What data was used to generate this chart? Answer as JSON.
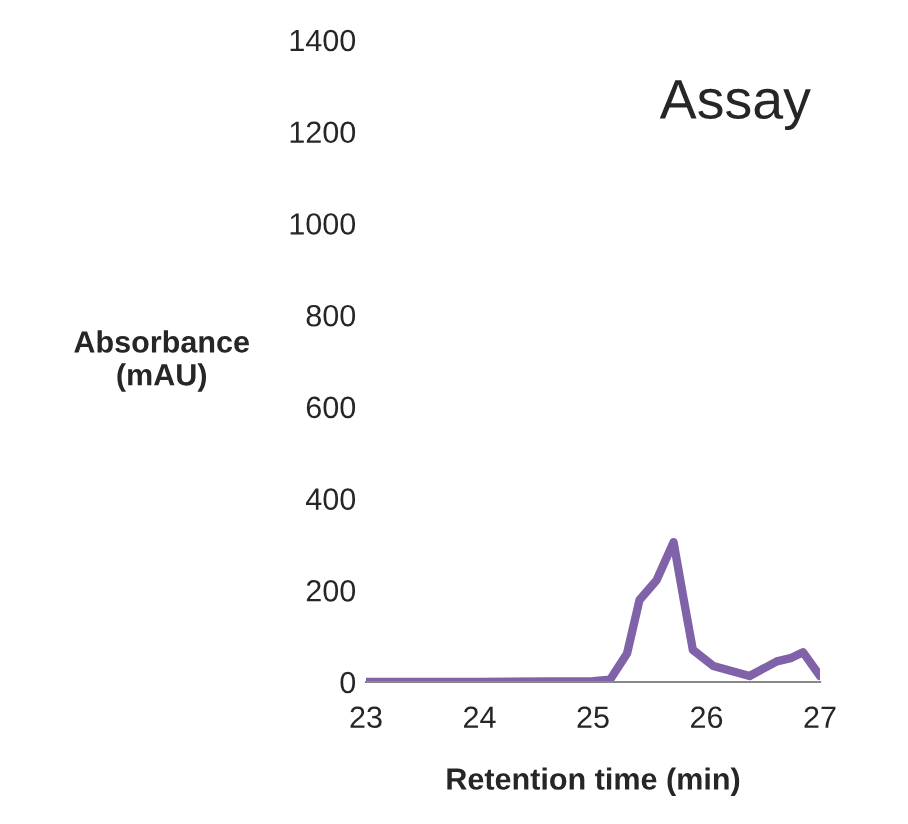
{
  "chart_data": {
    "type": "line",
    "xlabel": "Retention time (min)",
    "ylabel": "Absorbance\n(mAU)",
    "annotations": [
      "Assay"
    ],
    "series": [
      {
        "color": "#7f62a8",
        "x": [
          23,
          24,
          25.0,
          25.15,
          25.3,
          25.41,
          25.56,
          25.71,
          25.8,
          25.88,
          26.06,
          26.38,
          26.62,
          26.74,
          26.85,
          27.0
        ],
        "values": [
          0,
          0,
          2,
          5,
          62,
          179,
          222,
          305,
          179,
          70,
          35,
          13,
          45,
          52,
          65,
          13
        ]
      }
    ],
    "xlim": [
      23,
      27
    ],
    "xticks": [
      23,
      24,
      25,
      26,
      27
    ],
    "ylim": [
      0,
      1400
    ],
    "yticks": [
      0,
      200,
      400,
      600,
      800,
      1000,
      1200,
      1400
    ],
    "grid": false,
    "legend": false
  }
}
